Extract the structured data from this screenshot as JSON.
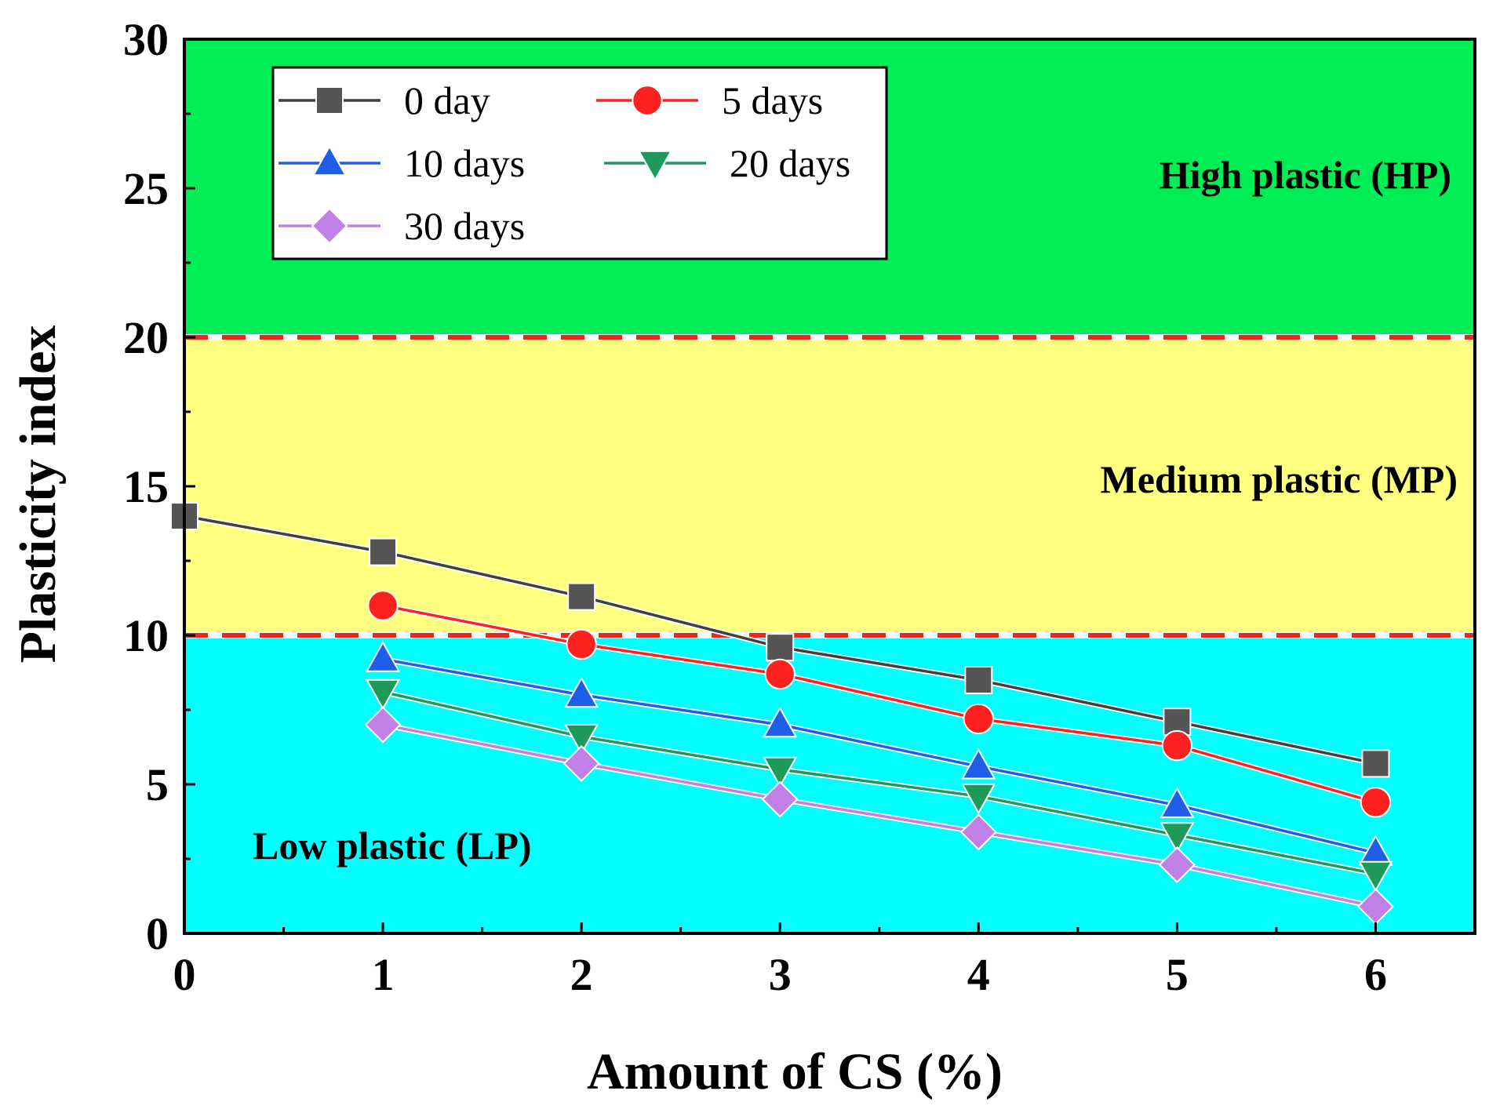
{
  "chart_data": {
    "type": "line",
    "xlabel": "Amount of CS (%)",
    "ylabel": "Plasticity index",
    "xlim": [
      0,
      6.5
    ],
    "ylim": [
      0,
      30
    ],
    "x_ticks": [
      0,
      1,
      2,
      3,
      4,
      5,
      6
    ],
    "y_ticks": [
      0,
      5,
      10,
      15,
      20,
      25,
      30
    ],
    "legend_position": "top-left",
    "grid": false,
    "regions": [
      {
        "name": "Low plastic (LP)",
        "from": 0,
        "to": 10,
        "color": "#00ffff"
      },
      {
        "name": "Medium plastic (MP)",
        "from": 10,
        "to": 20,
        "color": "#ffff80"
      },
      {
        "name": "High plastic (HP)",
        "from": 20,
        "to": 30,
        "color": "#00ee55"
      }
    ],
    "threshold_lines": {
      "values": [
        10,
        20
      ],
      "color": "#e8281f",
      "style": "dashed"
    },
    "series": [
      {
        "name": "0 day",
        "marker": "square",
        "color": "#555555",
        "line_color": "#404040",
        "x": [
          0,
          1,
          2,
          3,
          4,
          5,
          6
        ],
        "y": [
          14.0,
          12.8,
          11.3,
          9.6,
          8.5,
          7.1,
          5.7
        ]
      },
      {
        "name": "5 days",
        "marker": "circle",
        "color": "#ff2020",
        "line_color": "#ff2020",
        "x": [
          1,
          2,
          3,
          4,
          5,
          6
        ],
        "y": [
          11.0,
          9.7,
          8.7,
          7.2,
          6.3,
          4.4
        ]
      },
      {
        "name": "10 days",
        "marker": "triangle-up",
        "color": "#1f5fe8",
        "line_color": "#1f5fe8",
        "x": [
          1,
          2,
          3,
          4,
          5,
          6
        ],
        "y": [
          9.2,
          8.0,
          7.0,
          5.6,
          4.3,
          2.7
        ]
      },
      {
        "name": "20 days",
        "marker": "triangle-down",
        "color": "#1d9a5a",
        "line_color": "#1d9a5a",
        "x": [
          1,
          2,
          3,
          4,
          5,
          6
        ],
        "y": [
          8.1,
          6.6,
          5.5,
          4.6,
          3.3,
          2.0
        ]
      },
      {
        "name": "30 days",
        "marker": "diamond",
        "color": "#c080e8",
        "line_color": "#c080e8",
        "x": [
          1,
          2,
          3,
          4,
          5,
          6
        ],
        "y": [
          7.0,
          5.7,
          4.5,
          3.4,
          2.3,
          0.9
        ]
      }
    ]
  }
}
